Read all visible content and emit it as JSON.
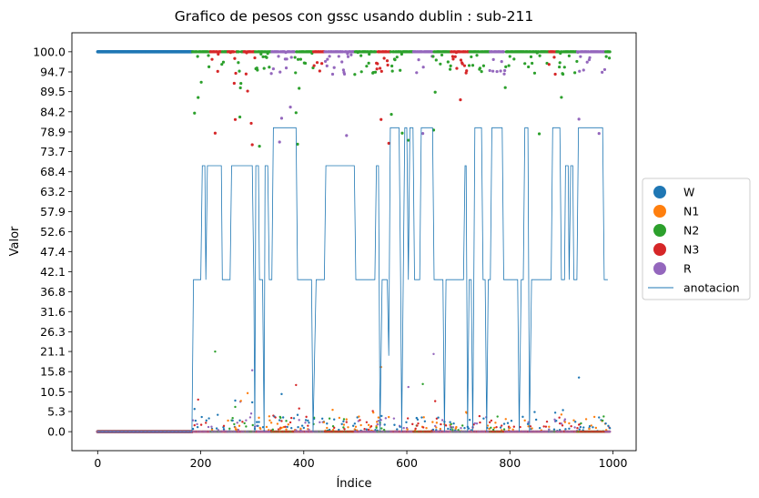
{
  "chart_data": {
    "type": "scatter",
    "title": "Grafico de pesos con gssc usando dublin :  sub-211",
    "xlabel": "Índice",
    "ylabel": "Valor",
    "xlim": [
      -50,
      1045
    ],
    "ylim": [
      -5,
      105
    ],
    "x_ticks": [
      0,
      200,
      400,
      600,
      800,
      1000
    ],
    "y_ticks": [
      "0.0",
      "5.3",
      "10.5",
      "15.8",
      "21.1",
      "26.3",
      "31.6",
      "36.8",
      "42.1",
      "47.4",
      "52.6",
      "57.9",
      "63.2",
      "68.4",
      "73.7",
      "78.9",
      "84.2",
      "89.5",
      "94.7",
      "100.0"
    ],
    "grid": false,
    "legend_position": "outside-right",
    "legend": [
      {
        "name": "W",
        "color": "#1f77b4",
        "kind": "marker"
      },
      {
        "name": "N1",
        "color": "#ff7f0e",
        "kind": "marker"
      },
      {
        "name": "N2",
        "color": "#2ca02c",
        "kind": "marker"
      },
      {
        "name": "N3",
        "color": "#d62728",
        "kind": "marker"
      },
      {
        "name": "R",
        "color": "#9467bd",
        "kind": "marker"
      },
      {
        "name": "anotacion",
        "color": "#1f77b4",
        "kind": "line"
      }
    ],
    "annotation_line": {
      "name": "anotacion",
      "color": "#1f77b4",
      "points": [
        [
          0,
          0
        ],
        [
          183,
          0
        ],
        [
          186,
          40
        ],
        [
          200,
          40
        ],
        [
          203,
          70
        ],
        [
          208,
          70
        ],
        [
          210,
          40
        ],
        [
          213,
          70
        ],
        [
          240,
          70
        ],
        [
          242,
          40
        ],
        [
          257,
          40
        ],
        [
          260,
          70
        ],
        [
          300,
          70
        ],
        [
          303,
          40
        ],
        [
          305,
          0
        ],
        [
          307,
          70
        ],
        [
          312,
          70
        ],
        [
          314,
          40
        ],
        [
          320,
          40
        ],
        [
          323,
          0
        ],
        [
          325,
          70
        ],
        [
          330,
          70
        ],
        [
          333,
          40
        ],
        [
          338,
          40
        ],
        [
          341,
          80
        ],
        [
          385,
          80
        ],
        [
          388,
          40
        ],
        [
          415,
          40
        ],
        [
          418,
          0
        ],
        [
          421,
          20
        ],
        [
          424,
          40
        ],
        [
          440,
          40
        ],
        [
          443,
          70
        ],
        [
          498,
          70
        ],
        [
          501,
          40
        ],
        [
          538,
          40
        ],
        [
          541,
          70
        ],
        [
          545,
          70
        ],
        [
          548,
          0
        ],
        [
          552,
          40
        ],
        [
          562,
          40
        ],
        [
          565,
          20
        ],
        [
          568,
          80
        ],
        [
          585,
          80
        ],
        [
          588,
          40
        ],
        [
          590,
          0
        ],
        [
          593,
          40
        ],
        [
          596,
          80
        ],
        [
          600,
          80
        ],
        [
          603,
          40
        ],
        [
          606,
          80
        ],
        [
          612,
          80
        ],
        [
          615,
          40
        ],
        [
          625,
          40
        ],
        [
          628,
          80
        ],
        [
          650,
          80
        ],
        [
          653,
          40
        ],
        [
          670,
          40
        ],
        [
          673,
          0
        ],
        [
          676,
          40
        ],
        [
          710,
          40
        ],
        [
          713,
          70
        ],
        [
          715,
          70
        ],
        [
          718,
          0
        ],
        [
          721,
          40
        ],
        [
          725,
          40
        ],
        [
          728,
          0
        ],
        [
          732,
          80
        ],
        [
          745,
          80
        ],
        [
          748,
          40
        ],
        [
          752,
          40
        ],
        [
          755,
          0
        ],
        [
          758,
          40
        ],
        [
          762,
          40
        ],
        [
          765,
          80
        ],
        [
          785,
          80
        ],
        [
          788,
          40
        ],
        [
          815,
          40
        ],
        [
          818,
          0
        ],
        [
          822,
          40
        ],
        [
          826,
          40
        ],
        [
          829,
          80
        ],
        [
          835,
          80
        ],
        [
          838,
          0
        ],
        [
          842,
          40
        ],
        [
          880,
          40
        ],
        [
          883,
          80
        ],
        [
          897,
          80
        ],
        [
          900,
          40
        ],
        [
          906,
          40
        ],
        [
          908,
          70
        ],
        [
          913,
          70
        ],
        [
          915,
          40
        ],
        [
          918,
          70
        ],
        [
          922,
          70
        ],
        [
          924,
          40
        ],
        [
          930,
          40
        ],
        [
          933,
          80
        ],
        [
          980,
          80
        ],
        [
          983,
          40
        ],
        [
          990,
          40
        ]
      ]
    },
    "scatter_description": "Per-index class probabilities (0-100) for W, N1, N2, N3, R; dominant class near 100, others near 0; 995 indices",
    "series": [
      {
        "name": "W",
        "color": "#1f77b4"
      },
      {
        "name": "N1",
        "color": "#ff7f0e"
      },
      {
        "name": "N2",
        "color": "#2ca02c"
      },
      {
        "name": "N3",
        "color": "#d62728"
      },
      {
        "name": "R",
        "color": "#9467bd"
      }
    ],
    "stage_segments": [
      {
        "from": 0,
        "to": 183,
        "stage": "W"
      },
      {
        "from": 184,
        "to": 218,
        "stage": "N2"
      },
      {
        "from": 219,
        "to": 240,
        "stage": "N3"
      },
      {
        "from": 241,
        "to": 252,
        "stage": "N2"
      },
      {
        "from": 253,
        "to": 270,
        "stage": "N3"
      },
      {
        "from": 271,
        "to": 283,
        "stage": "N2"
      },
      {
        "from": 284,
        "to": 305,
        "stage": "N3"
      },
      {
        "from": 306,
        "to": 336,
        "stage": "N2"
      },
      {
        "from": 337,
        "to": 382,
        "stage": "R"
      },
      {
        "from": 383,
        "to": 418,
        "stage": "N2"
      },
      {
        "from": 419,
        "to": 440,
        "stage": "N3"
      },
      {
        "from": 441,
        "to": 498,
        "stage": "R"
      },
      {
        "from": 499,
        "to": 540,
        "stage": "N2"
      },
      {
        "from": 541,
        "to": 568,
        "stage": "N3"
      },
      {
        "from": 569,
        "to": 612,
        "stage": "N2"
      },
      {
        "from": 613,
        "to": 650,
        "stage": "R"
      },
      {
        "from": 651,
        "to": 685,
        "stage": "N2"
      },
      {
        "from": 686,
        "to": 720,
        "stage": "N3"
      },
      {
        "from": 721,
        "to": 760,
        "stage": "N2"
      },
      {
        "from": 761,
        "to": 790,
        "stage": "R"
      },
      {
        "from": 791,
        "to": 875,
        "stage": "N2"
      },
      {
        "from": 876,
        "to": 890,
        "stage": "N3"
      },
      {
        "from": 891,
        "to": 930,
        "stage": "N2"
      },
      {
        "from": 931,
        "to": 985,
        "stage": "R"
      },
      {
        "from": 986,
        "to": 994,
        "stage": "N2"
      }
    ]
  }
}
